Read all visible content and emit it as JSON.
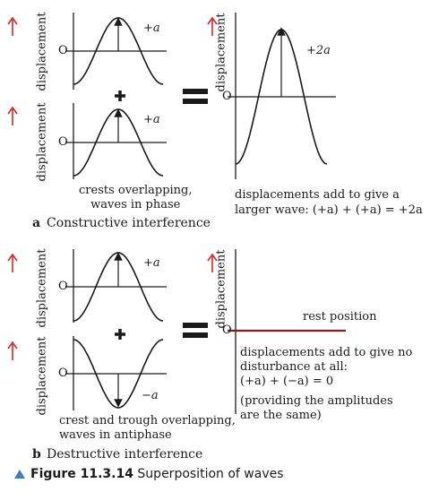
{
  "labels": {
    "displacement": "displacement",
    "origin": "O",
    "plus": "+",
    "amp_a": "+a",
    "amp_2a": "+2a",
    "amp_neg_a": "−a",
    "rest_position": "rest position"
  },
  "panel_a": {
    "letter": "a",
    "title": "Constructive interference",
    "note_left_1": "crests overlapping,",
    "note_left_2": "waves in phase",
    "note_right_1": "displacements add to give a",
    "note_right_2": "larger wave: (+a) + (+a) = +2a"
  },
  "panel_b": {
    "letter": "b",
    "title": "Destructive interference",
    "note_left_1": "crest and trough overlapping,",
    "note_left_2": "waves in antiphase",
    "note_right_1": "displacements add to give no",
    "note_right_2": "disturbance at all:",
    "note_right_3": "(+a) + (−a) = 0",
    "note_right_4": "(providing the amplitudes",
    "note_right_5": "are the same)"
  },
  "figure": {
    "label": "Figure 11.3.14",
    "caption": "Superposition of waves"
  },
  "colors": {
    "arrow": "#d2281e",
    "rest_line": "#8b1a1a",
    "caption_triangle": "#3a7fc1"
  }
}
